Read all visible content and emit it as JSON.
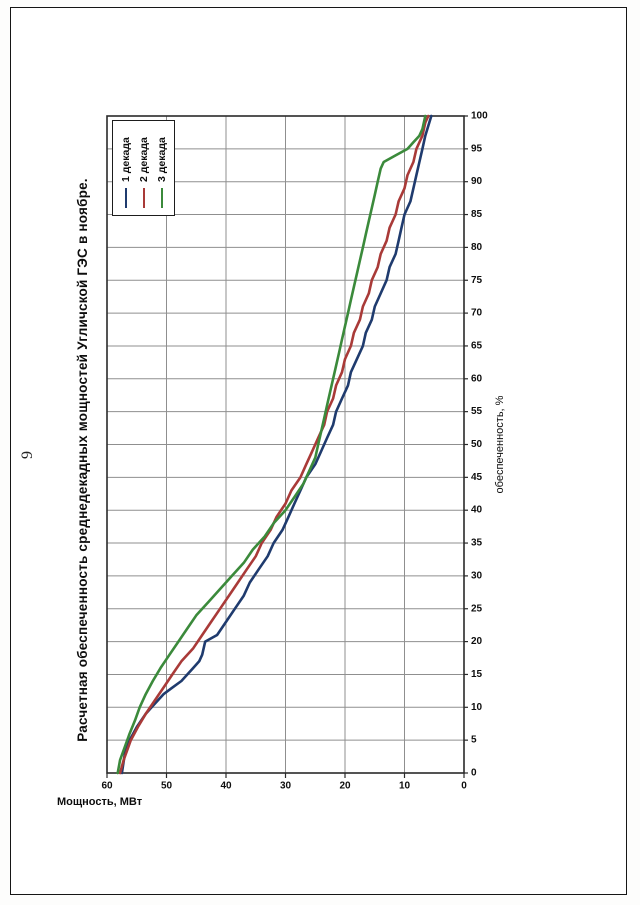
{
  "page": {
    "number": "9"
  },
  "chart_data": {
    "type": "line",
    "title": "Расчетная обеспеченность среднедекадных мощностей Угличской ГЭС в ноябре.",
    "xlabel": "обеспеченность, %",
    "ylabel": "Мощность, МВт",
    "xlim": [
      0,
      100
    ],
    "ylim": [
      0,
      60
    ],
    "x_tick_step": 5,
    "y_tick_step": 10,
    "grid": true,
    "legend_position": "top-right-inside",
    "series": [
      {
        "name": "1 декада",
        "color": "#1f3b6e",
        "points": [
          [
            0,
            57.5
          ],
          [
            3,
            57
          ],
          [
            5,
            56.2
          ],
          [
            7,
            55
          ],
          [
            9,
            53.5
          ],
          [
            10,
            52.5
          ],
          [
            12,
            50.5
          ],
          [
            13,
            49
          ],
          [
            14,
            47.5
          ],
          [
            16,
            45.5
          ],
          [
            17,
            44.5
          ],
          [
            18,
            44
          ],
          [
            20,
            43.5
          ],
          [
            21,
            41.5
          ],
          [
            23,
            40
          ],
          [
            25,
            38.5
          ],
          [
            27,
            37
          ],
          [
            29,
            36
          ],
          [
            31,
            34.5
          ],
          [
            33,
            33
          ],
          [
            35,
            32
          ],
          [
            37,
            30.5
          ],
          [
            39,
            29.5
          ],
          [
            41,
            28.5
          ],
          [
            43,
            27.5
          ],
          [
            45,
            26.5
          ],
          [
            47,
            25
          ],
          [
            49,
            24
          ],
          [
            51,
            23
          ],
          [
            53,
            22
          ],
          [
            55,
            21.5
          ],
          [
            57,
            20.5
          ],
          [
            59,
            19.5
          ],
          [
            61,
            19
          ],
          [
            63,
            18
          ],
          [
            65,
            17
          ],
          [
            67,
            16.5
          ],
          [
            69,
            15.5
          ],
          [
            71,
            15
          ],
          [
            73,
            14
          ],
          [
            75,
            13
          ],
          [
            77,
            12.5
          ],
          [
            79,
            11.5
          ],
          [
            81,
            11
          ],
          [
            83,
            10.5
          ],
          [
            85,
            10
          ],
          [
            87,
            9
          ],
          [
            89,
            8.5
          ],
          [
            91,
            8
          ],
          [
            93,
            7.5
          ],
          [
            95,
            7
          ],
          [
            97,
            6.5
          ],
          [
            100,
            5.5
          ]
        ]
      },
      {
        "name": "2 декада",
        "color": "#a93a38",
        "points": [
          [
            0,
            57.8
          ],
          [
            2,
            57.2
          ],
          [
            5,
            56
          ],
          [
            7,
            54.8
          ],
          [
            9,
            53.5
          ],
          [
            11,
            52
          ],
          [
            13,
            50.5
          ],
          [
            15,
            49
          ],
          [
            17,
            47.5
          ],
          [
            19,
            45.5
          ],
          [
            21,
            44
          ],
          [
            23,
            42.5
          ],
          [
            25,
            41
          ],
          [
            27,
            39.5
          ],
          [
            29,
            38
          ],
          [
            31,
            36.5
          ],
          [
            33,
            35
          ],
          [
            35,
            34
          ],
          [
            37,
            32.5
          ],
          [
            39,
            31.5
          ],
          [
            41,
            30
          ],
          [
            43,
            29
          ],
          [
            45,
            27.5
          ],
          [
            47,
            26.5
          ],
          [
            49,
            25.5
          ],
          [
            51,
            24.5
          ],
          [
            53,
            23.5
          ],
          [
            55,
            23
          ],
          [
            57,
            22
          ],
          [
            59,
            21.5
          ],
          [
            61,
            20.5
          ],
          [
            63,
            20
          ],
          [
            65,
            19
          ],
          [
            67,
            18.5
          ],
          [
            69,
            17.5
          ],
          [
            71,
            17
          ],
          [
            73,
            16
          ],
          [
            75,
            15.5
          ],
          [
            77,
            14.5
          ],
          [
            79,
            14
          ],
          [
            81,
            13
          ],
          [
            83,
            12.5
          ],
          [
            85,
            11.5
          ],
          [
            87,
            11
          ],
          [
            89,
            10
          ],
          [
            91,
            9.5
          ],
          [
            93,
            8.5
          ],
          [
            95,
            8
          ],
          [
            97,
            7
          ],
          [
            99,
            6.5
          ],
          [
            100,
            6
          ]
        ]
      },
      {
        "name": "3 декада",
        "color": "#3b8a3b",
        "points": [
          [
            0,
            58.2
          ],
          [
            2,
            57.8
          ],
          [
            4,
            57
          ],
          [
            6,
            56.2
          ],
          [
            8,
            55.3
          ],
          [
            10,
            54.5
          ],
          [
            12,
            53.5
          ],
          [
            14,
            52.3
          ],
          [
            16,
            51
          ],
          [
            18,
            49.5
          ],
          [
            20,
            48
          ],
          [
            22,
            46.5
          ],
          [
            24,
            45
          ],
          [
            26,
            43
          ],
          [
            28,
            41
          ],
          [
            30,
            39
          ],
          [
            32,
            37
          ],
          [
            34,
            35.5
          ],
          [
            36,
            33.5
          ],
          [
            38,
            32
          ],
          [
            40,
            30
          ],
          [
            42,
            28.5
          ],
          [
            44,
            27
          ],
          [
            46,
            26
          ],
          [
            48,
            25
          ],
          [
            50,
            24.5
          ],
          [
            52,
            24
          ],
          [
            54,
            23.5
          ],
          [
            56,
            23
          ],
          [
            58,
            22.5
          ],
          [
            60,
            22
          ],
          [
            62,
            21.5
          ],
          [
            64,
            21
          ],
          [
            66,
            20.5
          ],
          [
            68,
            20
          ],
          [
            70,
            19.5
          ],
          [
            72,
            19
          ],
          [
            74,
            18.5
          ],
          [
            76,
            18
          ],
          [
            78,
            17.5
          ],
          [
            80,
            17
          ],
          [
            82,
            16.5
          ],
          [
            84,
            16
          ],
          [
            86,
            15.5
          ],
          [
            88,
            15
          ],
          [
            90,
            14.5
          ],
          [
            92,
            14
          ],
          [
            93,
            13.5
          ],
          [
            94,
            11.5
          ],
          [
            95,
            9.5
          ],
          [
            96,
            8.5
          ],
          [
            97,
            7.5
          ],
          [
            98,
            7
          ],
          [
            100,
            6.5
          ]
        ]
      }
    ]
  }
}
